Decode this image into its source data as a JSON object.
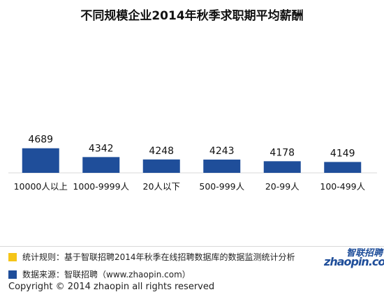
{
  "chart_data": {
    "type": "bar",
    "title": "不同规模企业2014年秋季求职期平均薪酬",
    "categories": [
      "10000人以上",
      "1000-9999人",
      "20人以下",
      "500-999人",
      "20-99人",
      "100-499人"
    ],
    "values": [
      4689,
      4342,
      4248,
      4243,
      4178,
      4149
    ],
    "xlabel": "",
    "ylabel": "",
    "bar_color": "#1f4e9a"
  },
  "notes": [
    {
      "label": "统计规则：基于智联招聘2014年秋季在线招聘数据库的数据监测统计分析",
      "color": "#f5c518"
    },
    {
      "label": "数据来源：智联招聘（www.zhaopin.com）",
      "color": "#1f4e9a"
    }
  ],
  "copyright": "Copyright   ©  2014 zhaopin all rights reserved",
  "logo": {
    "cn": "智联招聘",
    "en": "zhaopin.com"
  }
}
